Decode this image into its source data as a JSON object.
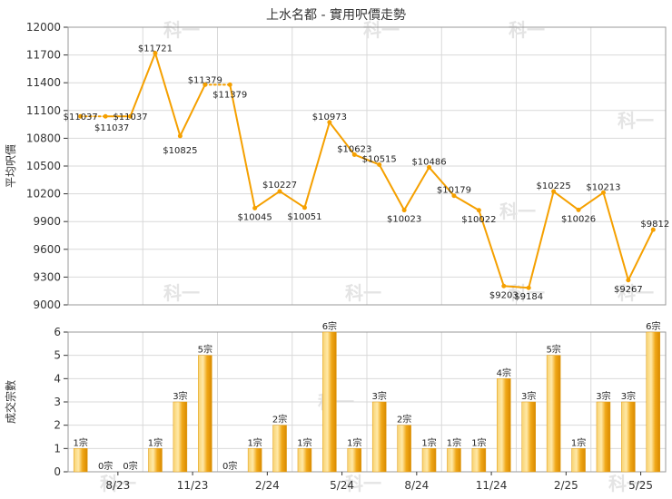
{
  "chart_data": [
    {
      "type": "line",
      "title": "上水名都 - 實用呎價走勢",
      "ylabel": "平均呎價",
      "ylim": [
        9000,
        12000
      ],
      "yticks": [
        9000,
        9300,
        9600,
        9900,
        10200,
        10500,
        10800,
        11100,
        11400,
        11700,
        12000
      ],
      "grid": true,
      "color": "#f5a000",
      "labels": [
        "$11037",
        "$11037",
        "$11037",
        "$11721",
        "$10825",
        "$11379",
        "$11379",
        "$10045",
        "$10227",
        "$10051",
        "$10973",
        "$10623",
        "$10515",
        "$10023",
        "$10486",
        "$10179",
        "$10022",
        "$9203",
        "$9184",
        "$10225",
        "$10026",
        "$10213",
        "$9267",
        "$9812"
      ],
      "series": [
        {
          "values": [
            11037,
            11037,
            11037,
            11721,
            10825,
            11379,
            11379,
            10045,
            10227,
            10051,
            10973,
            10623,
            10515,
            10023,
            10486,
            10179,
            10022,
            9203,
            9184,
            10225,
            10026,
            10213,
            9267,
            9812
          ]
        }
      ],
      "dotted_segments": [
        [
          0,
          1
        ],
        [
          5,
          6
        ]
      ]
    },
    {
      "type": "bar",
      "ylabel": "成交宗數",
      "ylim": [
        0,
        6
      ],
      "yticks": [
        0,
        1,
        2,
        3,
        4,
        5,
        6
      ],
      "grid": true,
      "color": "#f0a818",
      "categories": [
        "8/23",
        "11/23",
        "2/24",
        "5/24",
        "8/24",
        "11/24",
        "2/25",
        "5/25"
      ],
      "values": [
        1,
        0,
        0,
        1,
        3,
        5,
        0,
        1,
        2,
        1,
        6,
        1,
        3,
        2,
        1,
        1,
        1,
        4,
        3,
        5,
        1,
        3,
        3,
        6
      ],
      "labels": [
        "1宗",
        "0宗",
        "0宗",
        "1宗",
        "3宗",
        "5宗",
        "0宗",
        "1宗",
        "2宗",
        "1宗",
        "6宗",
        "1宗",
        "3宗",
        "2宗",
        "1宗",
        "1宗",
        "1宗",
        "4宗",
        "3宗",
        "5宗",
        "1宗",
        "3宗",
        "3宗",
        "6宗"
      ]
    }
  ],
  "watermark": "科一"
}
